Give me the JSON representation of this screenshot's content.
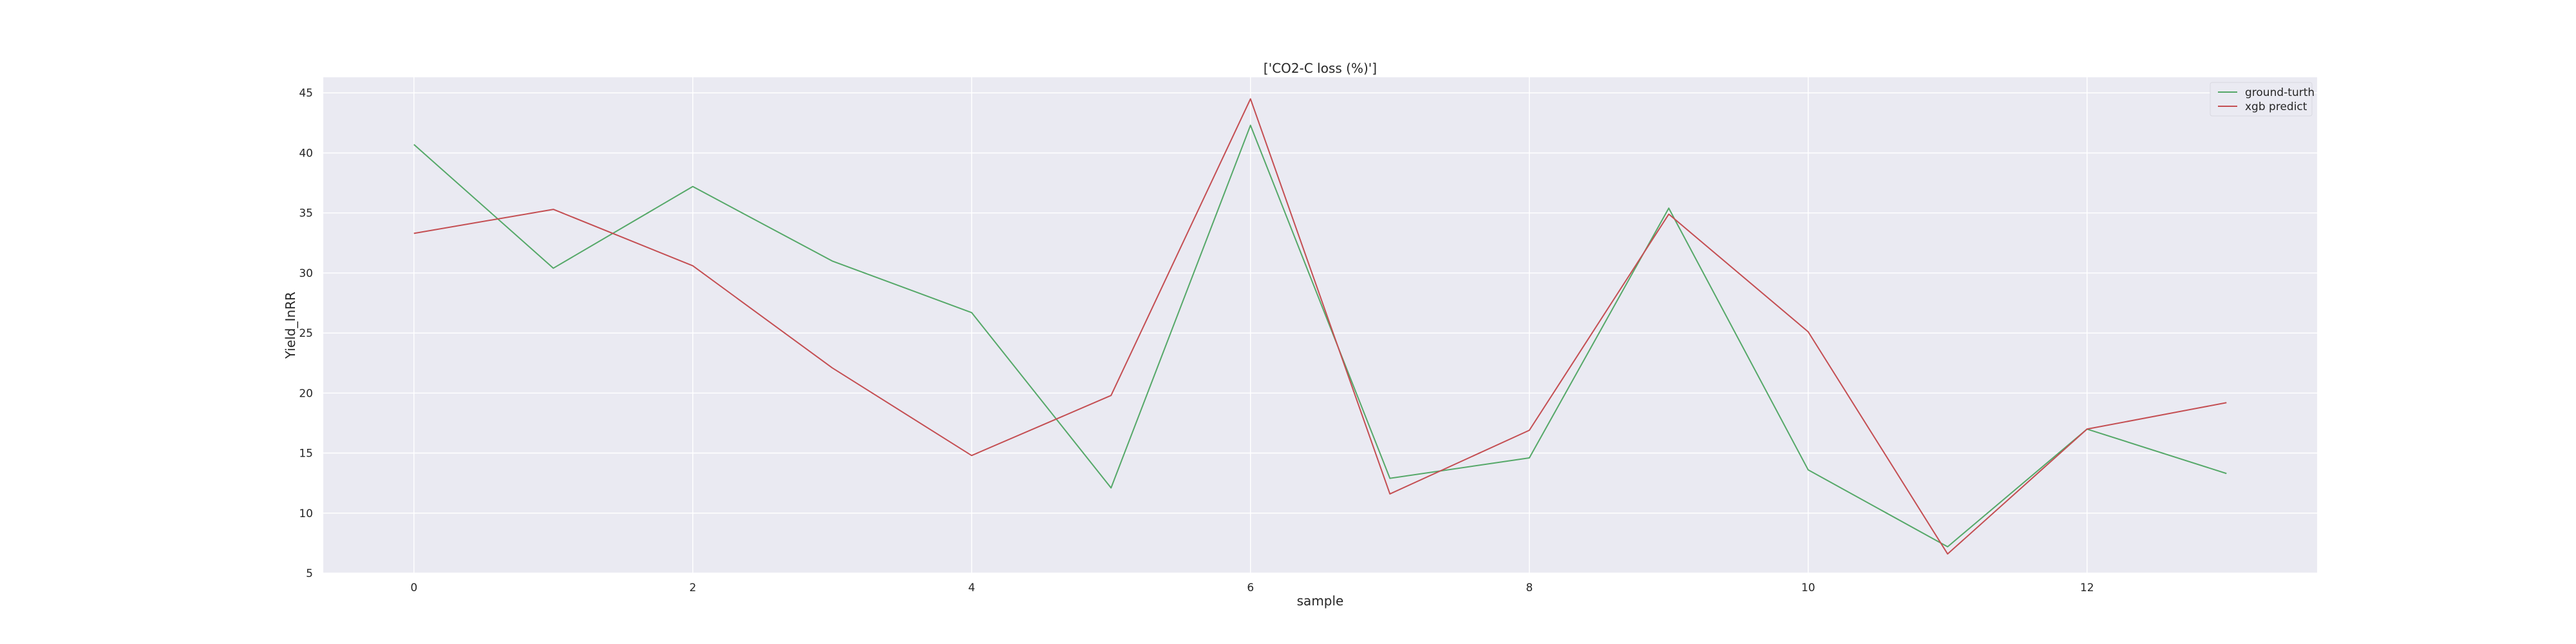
{
  "chart_data": {
    "type": "line",
    "title": "['CO2-C loss (%)']",
    "xlabel": "sample",
    "ylabel": "Yield_InRR",
    "x": [
      0,
      1,
      2,
      3,
      4,
      5,
      6,
      7,
      8,
      9,
      10,
      11,
      12,
      13
    ],
    "xlim": [
      -0.65,
      13.65
    ],
    "ylim": [
      5,
      46.3
    ],
    "xticks": [
      0,
      2,
      4,
      6,
      8,
      10,
      12
    ],
    "yticks": [
      5,
      10,
      15,
      20,
      25,
      30,
      35,
      40,
      45
    ],
    "grid": true,
    "legend_position": "top-right",
    "series": [
      {
        "name": "ground-turth",
        "color": "#55a868",
        "values": [
          40.7,
          30.4,
          37.2,
          31.0,
          26.7,
          12.1,
          42.3,
          12.9,
          14.6,
          35.4,
          13.6,
          7.2,
          17.0,
          13.3
        ]
      },
      {
        "name": "xgb predict",
        "color": "#c44e52",
        "values": [
          33.3,
          35.3,
          30.6,
          22.1,
          14.8,
          19.8,
          44.5,
          11.6,
          16.9,
          34.9,
          25.1,
          6.6,
          17.0,
          19.2
        ]
      }
    ]
  }
}
